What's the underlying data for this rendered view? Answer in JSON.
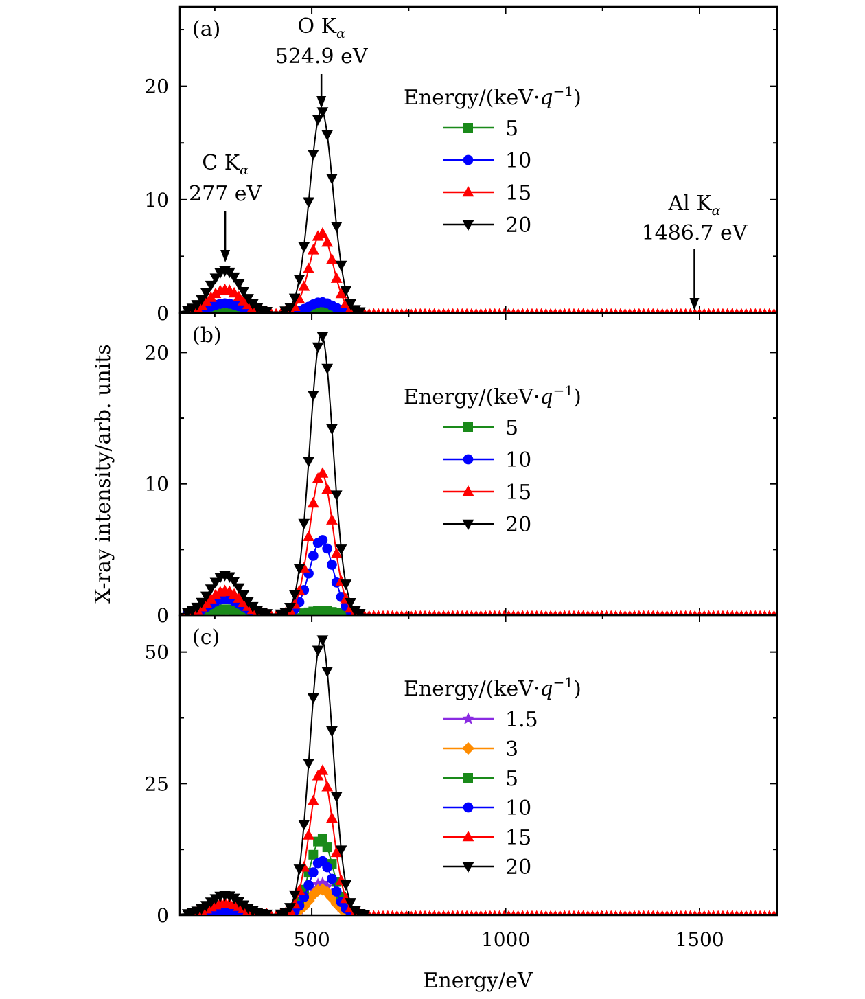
{
  "figure": {
    "xlabel": "Energy/eV",
    "ylabel": "X-ray intensity/arb. units",
    "xlim": [
      160,
      1700
    ],
    "xticks": [
      500,
      1000,
      1500
    ]
  },
  "series_styles": {
    "1.5": {
      "color": "#8a2be2",
      "marker": "star"
    },
    "3": {
      "color": "#ff8c00",
      "marker": "diamond"
    },
    "5": {
      "color": "#1a8a1a",
      "marker": "square"
    },
    "10": {
      "color": "#0000ff",
      "marker": "circle"
    },
    "15": {
      "color": "#ff0000",
      "marker": "triangle-up"
    },
    "20": {
      "color": "#000000",
      "marker": "triangle-down"
    }
  },
  "chart_data": [
    {
      "type": "line",
      "panel": "(a)",
      "ylim": [
        0,
        27
      ],
      "yticks": [
        0,
        10,
        20
      ],
      "legend_title": "Energy/(keV·q⁻¹)",
      "legend_position": "top-right",
      "annotations": [
        {
          "line1": "C K",
          "sub": "α",
          "line2": "277 eV",
          "x": 277
        },
        {
          "line1": "O K",
          "sub": "α",
          "line2": "524.9 eV",
          "x": 524.9
        },
        {
          "line1": "Al K",
          "sub": "α",
          "line2": "1486.7 eV",
          "x": 1486.7
        }
      ],
      "peaks": [
        {
          "name": "5",
          "c": 0.2,
          "o": 0.2
        },
        {
          "name": "10",
          "c": 0.8,
          "o": 0.9
        },
        {
          "name": "15",
          "c": 2.0,
          "o": 7.0
        },
        {
          "name": "20",
          "c": 3.7,
          "o": 17.8
        }
      ]
    },
    {
      "type": "line",
      "panel": "(b)",
      "ylim": [
        0,
        23
      ],
      "yticks": [
        0,
        10,
        20
      ],
      "legend_title": "Energy/(keV·q⁻¹)",
      "legend_position": "top-right",
      "annotations": [],
      "peaks": [
        {
          "name": "5",
          "c": 0.4,
          "o": 0.3
        },
        {
          "name": "10",
          "c": 1.2,
          "o": 5.7
        },
        {
          "name": "15",
          "c": 1.8,
          "o": 10.8
        },
        {
          "name": "20",
          "c": 3.0,
          "o": 21.3
        }
      ]
    },
    {
      "type": "line",
      "panel": "(c)",
      "ylim": [
        0,
        57
      ],
      "yticks": [
        0,
        25,
        50
      ],
      "legend_title": "Energy/(keV·q⁻¹)",
      "legend_position": "top-right",
      "annotations": [],
      "peaks": [
        {
          "name": "1.5",
          "c": 0.2,
          "o": 6.0
        },
        {
          "name": "3",
          "c": 0.2,
          "o": 4.8
        },
        {
          "name": "5",
          "c": 0.4,
          "o": 14.5
        },
        {
          "name": "10",
          "c": 0.8,
          "o": 10.2
        },
        {
          "name": "15",
          "c": 2.2,
          "o": 27.5
        },
        {
          "name": "20",
          "c": 3.7,
          "o": 52.5
        }
      ]
    }
  ]
}
